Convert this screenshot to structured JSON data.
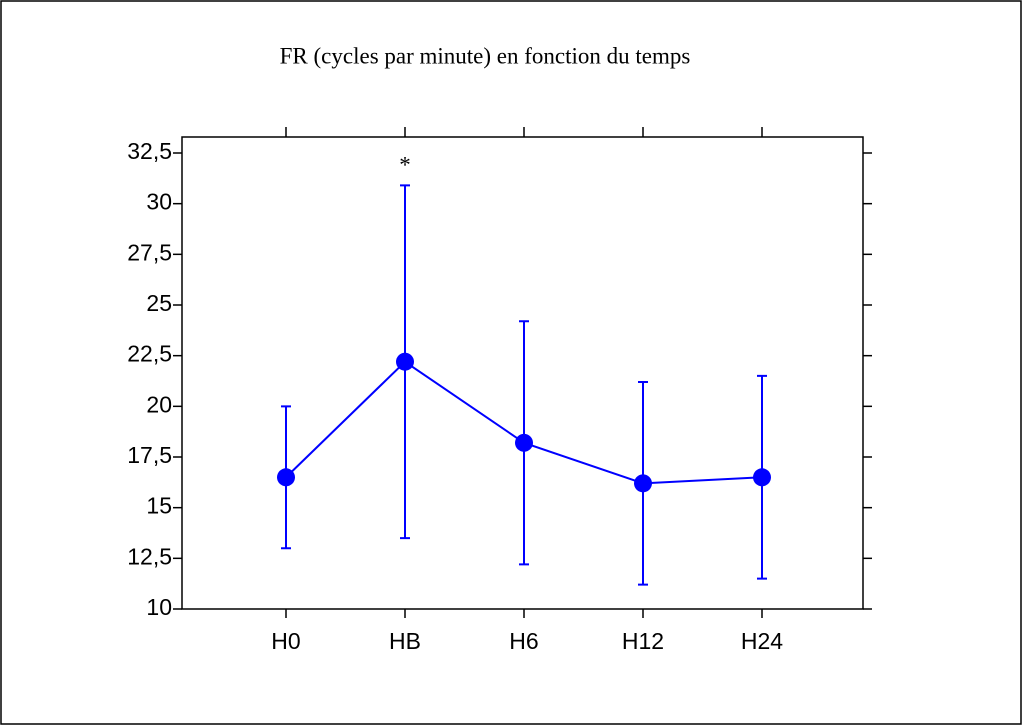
{
  "chart_data": {
    "type": "line",
    "title": "FR (cycles par minute) en fonction du temps",
    "categories": [
      "H0",
      "HB",
      "H6",
      "H12",
      "H24"
    ],
    "series": [
      {
        "color": "#0000ff",
        "values": [
          16.5,
          22.2,
          18.2,
          16.2,
          16.5
        ],
        "errors": [
          3.5,
          8.7,
          6,
          5,
          5
        ]
      }
    ],
    "annotations": [
      {
        "text": "*",
        "category": 1
      }
    ],
    "ylim": [
      10,
      32.5
    ],
    "yticks": [
      10,
      {
        "value": 12.5,
        "label": "12,5"
      },
      15,
      {
        "value": 17.5,
        "label": "17,5"
      },
      20,
      {
        "value": 22.5,
        "label": "22,5"
      },
      25,
      {
        "value": 27.5,
        "label": "27,5"
      },
      30,
      {
        "value": 32.5,
        "label": "32,5"
      }
    ],
    "grid": false
  }
}
